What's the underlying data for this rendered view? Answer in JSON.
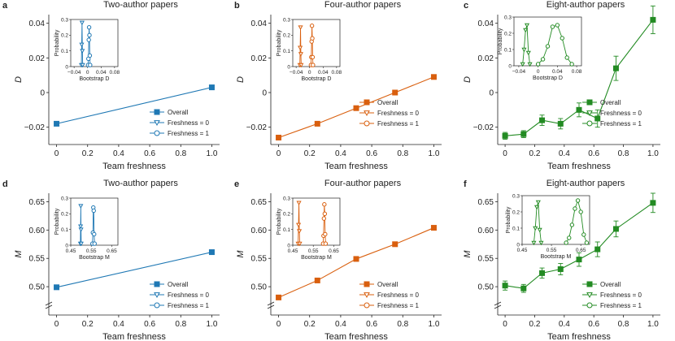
{
  "figure": {
    "x_axis_label": "Team freshness",
    "legend_labels": [
      "Overall",
      "Freshness = 0",
      "Freshness = 1"
    ],
    "inset_y_label": "Probability"
  },
  "chart_data": [
    {
      "type": "line",
      "panel": "a",
      "title": "Two-author papers",
      "xlabel": "Team freshness",
      "ylabel": "D",
      "xlim": [
        -0.05,
        1.05
      ],
      "ylim": [
        -0.03,
        0.045
      ],
      "xticks": [
        0,
        0.2,
        0.4,
        0.6,
        0.8,
        1.0
      ],
      "xtick_labels": [
        "0",
        "0.2",
        "0.4",
        "0.6",
        "0.8",
        "1.0"
      ],
      "yticks": [
        -0.02,
        0,
        0.02,
        0.04
      ],
      "ytick_labels": [
        "−0.02",
        "0",
        "0.02",
        "0.04"
      ],
      "color": "#1f78b4",
      "series": [
        {
          "name": "Overall",
          "x": [
            0,
            1.0
          ],
          "y": [
            -0.018,
            0.003
          ],
          "err": [
            0,
            0
          ]
        }
      ],
      "inset": {
        "xlabel": "Bootstrap D",
        "ylabel": "Probability",
        "xlim": [
          -0.05,
          0.09
        ],
        "ylim": [
          0,
          0.3
        ],
        "xticks": [
          -0.04,
          0,
          0.04,
          0.08
        ],
        "xtick_labels": [
          "−0.04",
          "0",
          "0.04",
          "0.08"
        ],
        "yticks": [
          0,
          0.1,
          0.2,
          0.3
        ],
        "ytick_labels": [
          "0",
          "0.1",
          "0.2",
          "0.3"
        ],
        "dist0": {
          "x": [
            -0.0185,
            -0.0175,
            -0.0165,
            -0.0155,
            -0.0145
          ],
          "y": [
            0.01,
            0.14,
            0.28,
            0.1,
            0.01
          ]
        },
        "dist1": {
          "x": [
            0.0015,
            0.0025,
            0.0035,
            0.0045,
            0.0055,
            0.0065,
            0.0075
          ],
          "y": [
            0.01,
            0.05,
            0.17,
            0.25,
            0.2,
            0.07,
            0.01
          ]
        }
      }
    },
    {
      "type": "line",
      "panel": "b",
      "title": "Four-author papers",
      "xlabel": "Team freshness",
      "ylabel": "D",
      "xlim": [
        -0.05,
        1.05
      ],
      "ylim": [
        -0.03,
        0.045
      ],
      "xticks": [
        0,
        0.2,
        0.4,
        0.6,
        0.8,
        1.0
      ],
      "xtick_labels": [
        "0",
        "0.2",
        "0.4",
        "0.6",
        "0.8",
        "1.0"
      ],
      "yticks": [
        -0.02,
        0,
        0.02,
        0.04
      ],
      "ytick_labels": [
        "−0.02",
        "0",
        "0.02",
        "0.04"
      ],
      "color": "#d95f0e",
      "series": [
        {
          "name": "Overall",
          "x": [
            0,
            0.25,
            0.5,
            0.75,
            1.0
          ],
          "y": [
            -0.026,
            -0.018,
            -0.009,
            0.0,
            0.009
          ],
          "err": [
            0,
            0,
            0,
            0,
            0
          ]
        }
      ],
      "inset": {
        "xlabel": "Bootstrap D",
        "ylabel": "Probability",
        "xlim": [
          -0.05,
          0.09
        ],
        "ylim": [
          0,
          0.3
        ],
        "xticks": [
          -0.04,
          0,
          0.04,
          0.08
        ],
        "xtick_labels": [
          "−0.04",
          "0",
          "0.04",
          "0.08"
        ],
        "yticks": [
          0,
          0.1,
          0.2,
          0.3
        ],
        "ytick_labels": [
          "0",
          "0.1",
          "0.2",
          "0.3"
        ],
        "dist0": {
          "x": [
            -0.029,
            -0.028,
            -0.027,
            -0.026,
            -0.025
          ],
          "y": [
            0.01,
            0.12,
            0.25,
            0.08,
            0.01
          ]
        },
        "dist1": {
          "x": [
            0.004,
            0.005,
            0.006,
            0.007,
            0.008,
            0.009,
            0.01
          ],
          "y": [
            0.01,
            0.06,
            0.16,
            0.26,
            0.18,
            0.06,
            0.01
          ]
        }
      }
    },
    {
      "type": "line",
      "panel": "c",
      "title": "Eight-author papers",
      "xlabel": "Team freshness",
      "ylabel": "D",
      "xlim": [
        -0.05,
        1.05
      ],
      "ylim": [
        -0.03,
        0.045
      ],
      "xticks": [
        0,
        0.2,
        0.4,
        0.6,
        0.8,
        1.0
      ],
      "xtick_labels": [
        "0",
        "0.2",
        "0.4",
        "0.6",
        "0.8",
        "1.0"
      ],
      "yticks": [
        -0.02,
        0,
        0.02,
        0.04
      ],
      "ytick_labels": [
        "−0.02",
        "0",
        "0.02",
        "0.04"
      ],
      "color": "#238b23",
      "series": [
        {
          "name": "Overall",
          "x": [
            0,
            0.125,
            0.25,
            0.375,
            0.5,
            0.625,
            0.75,
            1.0
          ],
          "y": [
            -0.025,
            -0.024,
            -0.016,
            -0.018,
            -0.01,
            -0.015,
            0.014,
            0.042
          ],
          "err": [
            0.002,
            0.002,
            0.003,
            0.003,
            0.004,
            0.005,
            0.007,
            0.008
          ]
        }
      ],
      "inset": {
        "xlabel": "Bootstrap D",
        "ylabel": "Probability",
        "xlim": [
          -0.05,
          0.09
        ],
        "ylim": [
          0,
          0.3
        ],
        "xticks": [
          -0.04,
          0,
          0.04,
          0.08
        ],
        "xtick_labels": [
          "−0.04",
          "0",
          "0.04",
          "0.08"
        ],
        "yticks": [
          0,
          0.1,
          0.2,
          0.3
        ],
        "ytick_labels": [
          "0",
          "0.1",
          "0.2",
          "0.3"
        ],
        "dist0": {
          "x": [
            -0.032,
            -0.029,
            -0.026,
            -0.023,
            -0.02,
            -0.017
          ],
          "y": [
            0.01,
            0.1,
            0.22,
            0.25,
            0.08,
            0.01
          ]
        },
        "dist1": {
          "x": [
            0.0,
            0.01,
            0.02,
            0.03,
            0.04,
            0.05,
            0.06,
            0.07
          ],
          "y": [
            0.01,
            0.04,
            0.12,
            0.24,
            0.25,
            0.17,
            0.05,
            0.01
          ]
        }
      }
    },
    {
      "type": "line",
      "panel": "d",
      "title": "Two-author papers",
      "xlabel": "Team freshness",
      "ylabel": "M",
      "xlim": [
        -0.05,
        1.05
      ],
      "ylim": [
        0.45,
        0.665
      ],
      "xticks": [
        0,
        0.2,
        0.4,
        0.6,
        0.8,
        1.0
      ],
      "xtick_labels": [
        "0",
        "0.2",
        "0.4",
        "0.6",
        "0.8",
        "1.0"
      ],
      "yticks": [
        0.5,
        0.55,
        0.6,
        0.65
      ],
      "ytick_labels": [
        "0.50",
        "0.55",
        "0.60",
        "0.65"
      ],
      "color": "#1f78b4",
      "series": [
        {
          "name": "Overall",
          "x": [
            0,
            1.0
          ],
          "y": [
            0.499,
            0.561
          ],
          "err": [
            0,
            0
          ]
        }
      ],
      "inset": {
        "xlabel": "Bootstrap M",
        "ylabel": "Probability",
        "xlim": [
          0.45,
          0.68
        ],
        "ylim": [
          0,
          0.3
        ],
        "xticks": [
          0.45,
          0.55,
          0.65
        ],
        "xtick_labels": [
          "0.45",
          "0.55",
          "0.65"
        ],
        "yticks": [
          0,
          0.1,
          0.2,
          0.3
        ],
        "ytick_labels": [
          "0",
          "0.1",
          "0.2",
          "0.3"
        ],
        "dist0": {
          "x": [
            0.497,
            0.498,
            0.499,
            0.5,
            0.501
          ],
          "y": [
            0.01,
            0.12,
            0.25,
            0.1,
            0.01
          ]
        },
        "dist1": {
          "x": [
            0.556,
            0.558,
            0.56,
            0.562,
            0.564,
            0.566
          ],
          "y": [
            0.01,
            0.08,
            0.24,
            0.22,
            0.07,
            0.01
          ]
        }
      }
    },
    {
      "type": "line",
      "panel": "e",
      "title": "Four-author papers",
      "xlabel": "Team freshness",
      "ylabel": "M",
      "xlim": [
        -0.05,
        1.05
      ],
      "ylim": [
        0.45,
        0.665
      ],
      "xticks": [
        0,
        0.2,
        0.4,
        0.6,
        0.8,
        1.0
      ],
      "xtick_labels": [
        "0",
        "0.2",
        "0.4",
        "0.6",
        "0.8",
        "1.0"
      ],
      "yticks": [
        0.5,
        0.55,
        0.6,
        0.65
      ],
      "ytick_labels": [
        "0.50",
        "0.55",
        "0.60",
        "0.65"
      ],
      "color": "#d95f0e",
      "series": [
        {
          "name": "Overall",
          "x": [
            0,
            0.25,
            0.5,
            0.75,
            1.0
          ],
          "y": [
            0.481,
            0.511,
            0.549,
            0.575,
            0.604
          ],
          "err": [
            0,
            0,
            0,
            0,
            0
          ]
        }
      ],
      "inset": {
        "xlabel": "Bootstrap M",
        "ylabel": "Probability",
        "xlim": [
          0.45,
          0.68
        ],
        "ylim": [
          0,
          0.3
        ],
        "xticks": [
          0.45,
          0.55,
          0.65
        ],
        "xtick_labels": [
          "0.45",
          "0.55",
          "0.65"
        ],
        "yticks": [
          0,
          0.1,
          0.2,
          0.3
        ],
        "ytick_labels": [
          "0",
          "0.1",
          "0.2",
          "0.3"
        ],
        "dist0": {
          "x": [
            0.476,
            0.478,
            0.48,
            0.482,
            0.484
          ],
          "y": [
            0.01,
            0.13,
            0.27,
            0.09,
            0.01
          ]
        },
        "dist1": {
          "x": [
            0.598,
            0.6,
            0.602,
            0.604,
            0.606,
            0.608,
            0.61
          ],
          "y": [
            0.01,
            0.06,
            0.17,
            0.26,
            0.2,
            0.07,
            0.01
          ]
        }
      }
    },
    {
      "type": "line",
      "panel": "f",
      "title": "Eight-author papers",
      "xlabel": "Team freshness",
      "ylabel": "M",
      "xlim": [
        -0.05,
        1.05
      ],
      "ylim": [
        0.45,
        0.665
      ],
      "xticks": [
        0,
        0.2,
        0.4,
        0.6,
        0.8,
        1.0
      ],
      "xtick_labels": [
        "0",
        "0.2",
        "0.4",
        "0.6",
        "0.8",
        "1.0"
      ],
      "yticks": [
        0.5,
        0.55,
        0.6,
        0.65
      ],
      "ytick_labels": [
        "0.50",
        "0.55",
        "0.60",
        "0.65"
      ],
      "color": "#238b23",
      "series": [
        {
          "name": "Overall",
          "x": [
            0,
            0.125,
            0.25,
            0.375,
            0.5,
            0.625,
            0.75,
            1.0
          ],
          "y": [
            0.502,
            0.497,
            0.524,
            0.531,
            0.548,
            0.566,
            0.602,
            0.648
          ],
          "err": [
            0.008,
            0.007,
            0.009,
            0.01,
            0.012,
            0.013,
            0.014,
            0.017
          ]
        }
      ],
      "inset": {
        "xlabel": "Bootstrap M",
        "ylabel": "Probability",
        "xlim": [
          0.45,
          0.68
        ],
        "ylim": [
          0,
          0.3
        ],
        "xticks": [
          0.45,
          0.55,
          0.65
        ],
        "xtick_labels": [
          "0.45",
          "0.55",
          "0.65"
        ],
        "yticks": [
          0,
          0.1,
          0.2,
          0.3
        ],
        "ytick_labels": [
          "0",
          "0.1",
          "0.2",
          "0.3"
        ],
        "dist0": {
          "x": [
            0.49,
            0.495,
            0.5,
            0.505,
            0.51,
            0.515
          ],
          "y": [
            0.01,
            0.1,
            0.23,
            0.26,
            0.09,
            0.01
          ]
        },
        "dist1": {
          "x": [
            0.6,
            0.61,
            0.62,
            0.63,
            0.64,
            0.65,
            0.66,
            0.67
          ],
          "y": [
            0.01,
            0.04,
            0.12,
            0.22,
            0.27,
            0.2,
            0.06,
            0.01
          ]
        }
      }
    }
  ]
}
